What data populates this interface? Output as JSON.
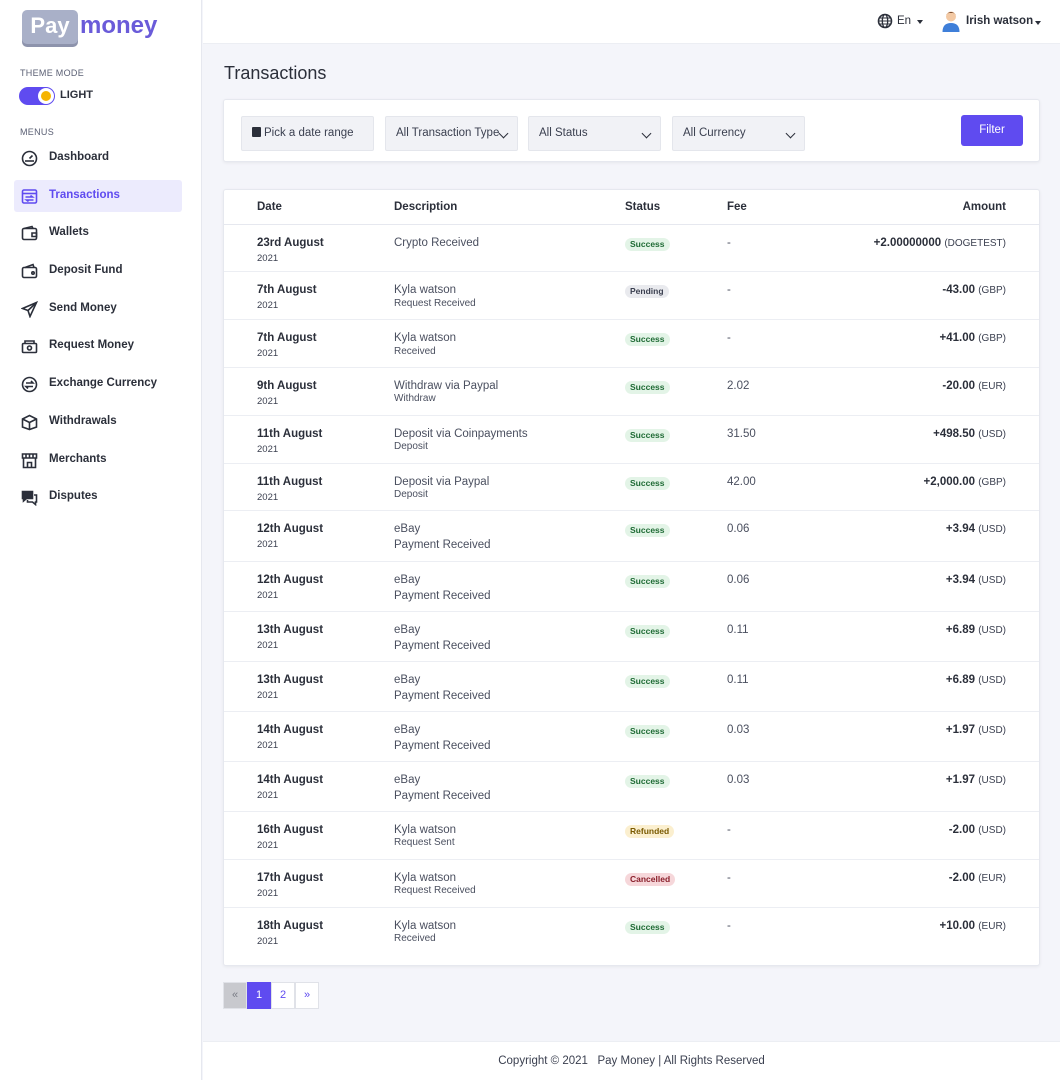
{
  "brand": {
    "logo_part1": "Pay",
    "logo_part2": "money"
  },
  "sidebar": {
    "theme_mode_label": "THEME MODE",
    "theme_value": "LIGHT",
    "menus_label": "MENUS",
    "items": [
      {
        "label": "Dashboard",
        "icon": "gauge-icon"
      },
      {
        "label": "Transactions",
        "icon": "transactions-icon",
        "active": true
      },
      {
        "label": "Wallets",
        "icon": "wallet-icon"
      },
      {
        "label": "Deposit Fund",
        "icon": "deposit-icon"
      },
      {
        "label": "Send Money",
        "icon": "send-icon"
      },
      {
        "label": "Request Money",
        "icon": "request-icon"
      },
      {
        "label": "Exchange Currency",
        "icon": "exchange-icon"
      },
      {
        "label": "Withdrawals",
        "icon": "withdraw-icon"
      },
      {
        "label": "Merchants",
        "icon": "merchant-icon"
      },
      {
        "label": "Disputes",
        "icon": "dispute-icon"
      }
    ]
  },
  "topbar": {
    "language": "En",
    "username": "Irish watson"
  },
  "page": {
    "title": "Transactions"
  },
  "filters": {
    "date_range": "Pick a date range",
    "type": "All Transaction Type",
    "status": "All Status",
    "currency": "All Currency",
    "button": "Filter"
  },
  "table": {
    "headers": {
      "date": "Date",
      "description": "Description",
      "status": "Status",
      "fee": "Fee",
      "amount": "Amount"
    },
    "rows": [
      {
        "date": "23rd August",
        "year": "2021",
        "desc": "Crypto Received",
        "sub": "",
        "status": "Success",
        "fee": "-",
        "amount": "+2.00000000",
        "currency": "(DOGETEST)"
      },
      {
        "date": "7th August",
        "year": "2021",
        "desc": "Kyla watson",
        "sub": "Request Received",
        "status": "Pending",
        "fee": "-",
        "amount": "-43.00",
        "currency": "(GBP)"
      },
      {
        "date": "7th August",
        "year": "2021",
        "desc": "Kyla watson",
        "sub": "Received",
        "status": "Success",
        "fee": "-",
        "amount": "+41.00",
        "currency": "(GBP)"
      },
      {
        "date": "9th August",
        "year": "2021",
        "desc": "Withdraw via Paypal",
        "sub": "Withdraw",
        "status": "Success",
        "fee": "2.02",
        "amount": "-20.00",
        "currency": "(EUR)"
      },
      {
        "date": "11th August",
        "year": "2021",
        "desc": "Deposit via Coinpayments",
        "sub": "Deposit",
        "status": "Success",
        "fee": "31.50",
        "amount": "+498.50",
        "currency": "(USD)"
      },
      {
        "date": "11th August",
        "year": "2021",
        "desc": "Deposit via Paypal",
        "sub": "Deposit",
        "status": "Success",
        "fee": "42.00",
        "amount": "+2,000.00",
        "currency": "(GBP)"
      },
      {
        "date": "12th August",
        "year": "2021",
        "desc": "eBay",
        "sub": "Payment Received",
        "status": "Success",
        "fee": "0.06",
        "amount": "+3.94",
        "currency": "(USD)"
      },
      {
        "date": "12th August",
        "year": "2021",
        "desc": "eBay",
        "sub": "Payment Received",
        "status": "Success",
        "fee": "0.06",
        "amount": "+3.94",
        "currency": "(USD)"
      },
      {
        "date": "13th August",
        "year": "2021",
        "desc": "eBay",
        "sub": "Payment Received",
        "status": "Success",
        "fee": "0.11",
        "amount": "+6.89",
        "currency": "(USD)"
      },
      {
        "date": "13th August",
        "year": "2021",
        "desc": "eBay",
        "sub": "Payment Received",
        "status": "Success",
        "fee": "0.11",
        "amount": "+6.89",
        "currency": "(USD)"
      },
      {
        "date": "14th August",
        "year": "2021",
        "desc": "eBay",
        "sub": "Payment Received",
        "status": "Success",
        "fee": "0.03",
        "amount": "+1.97",
        "currency": "(USD)"
      },
      {
        "date": "14th August",
        "year": "2021",
        "desc": "eBay",
        "sub": "Payment Received",
        "status": "Success",
        "fee": "0.03",
        "amount": "+1.97",
        "currency": "(USD)"
      },
      {
        "date": "16th August",
        "year": "2021",
        "desc": "Kyla watson",
        "sub": "Request Sent",
        "status": "Refunded",
        "fee": "-",
        "amount": "-2.00",
        "currency": "(USD)"
      },
      {
        "date": "17th August",
        "year": "2021",
        "desc": "Kyla watson",
        "sub": "Request Received",
        "status": "Cancelled",
        "fee": "-",
        "amount": "-2.00",
        "currency": "(EUR)"
      },
      {
        "date": "18th August",
        "year": "2021",
        "desc": "Kyla watson",
        "sub": "Received",
        "status": "Success",
        "fee": "-",
        "amount": "+10.00",
        "currency": "(EUR)"
      }
    ]
  },
  "pagination": {
    "prev": "«",
    "pages": [
      "1",
      "2"
    ],
    "next": "»",
    "current": "1"
  },
  "footer": {
    "text": "Copyright © 2021   Pay Money | All Rights Reserved"
  }
}
